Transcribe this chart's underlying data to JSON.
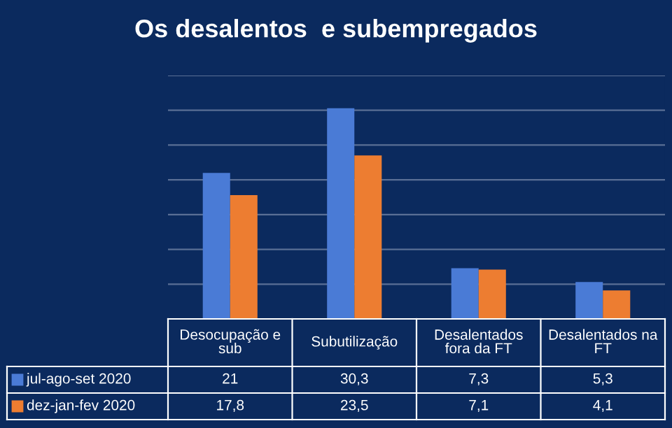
{
  "chart_data": {
    "type": "bar",
    "title": "Os desalentos  e subempregados",
    "categories": [
      "Desocupação e sub",
      "Subutilização",
      "Desalentados fora da FT",
      "Desalentados na FT"
    ],
    "series": [
      {
        "name": "jul-ago-set 2020",
        "color": "#4a7bd6",
        "values": [
          21,
          30.3,
          7.3,
          5.3
        ],
        "value_labels": [
          "21",
          "30,3",
          "7,3",
          "5,3"
        ]
      },
      {
        "name": "dez-jan-fev 2020",
        "color": "#ed7d31",
        "values": [
          17.8,
          23.5,
          7.1,
          4.1
        ],
        "value_labels": [
          "17,8",
          "23,5",
          "7,1",
          "4,1"
        ]
      }
    ],
    "ylim": [
      0,
      35
    ],
    "yticks": [
      {
        "value": 0,
        "label": null
      },
      {
        "value": 5,
        "label": null
      },
      {
        "value": 10,
        "label": null
      },
      {
        "value": 15,
        "label": null
      },
      {
        "value": 20,
        "label": null
      },
      {
        "value": 25,
        "label": null
      },
      {
        "value": 30,
        "label": null
      },
      {
        "value": 35,
        "label": null
      }
    ],
    "grid": "y",
    "legend": "bottom"
  }
}
